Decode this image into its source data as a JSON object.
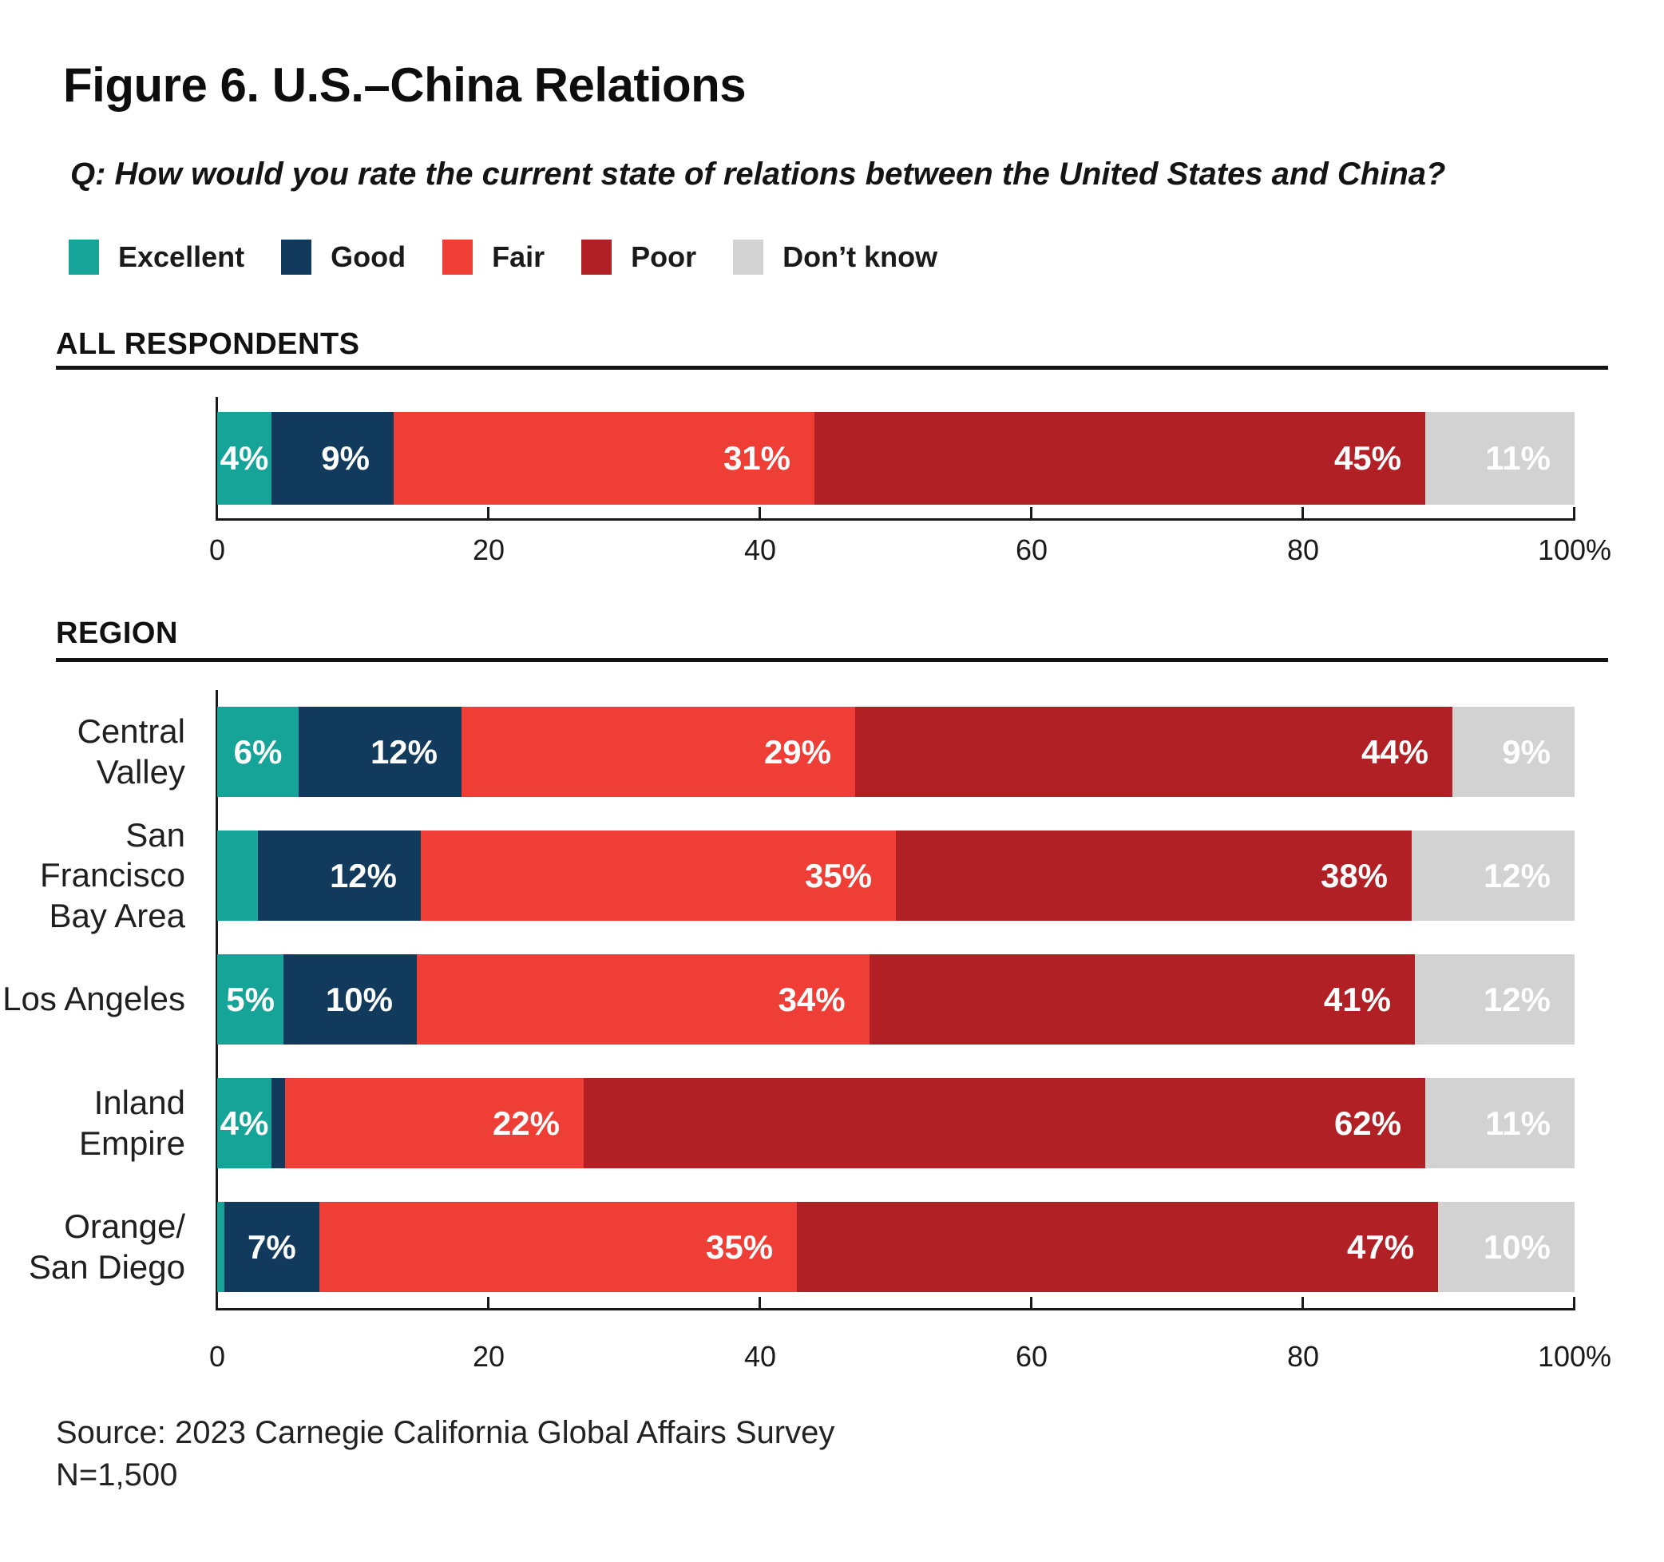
{
  "title": "Figure 6. U.S.–China Relations",
  "question": "Q: How would you rate the current state of relations between the United States and China?",
  "legend": {
    "items": [
      {
        "label": "Excellent",
        "color": "#16A398"
      },
      {
        "label": "Good",
        "color": "#113A5D"
      },
      {
        "label": "Fair",
        "color": "#EF3E36"
      },
      {
        "label": "Poor",
        "color": "#B02025"
      },
      {
        "label": "Don’t know",
        "color": "#D2D2D2"
      }
    ]
  },
  "source": {
    "line1": "Source: 2023 Carnegie California Global Affairs Survey",
    "line2": "N=1,500"
  },
  "colors": {
    "excellent": "#16A398",
    "good": "#113A5D",
    "fair": "#EF3E36",
    "poor": "#B02025",
    "dont_know": "#D2D2D2",
    "axis": "#1A1A1A",
    "bar_label_text": "#FFFFFF"
  },
  "chart_data": [
    {
      "type": "bar",
      "stacked": true,
      "orientation": "horizontal",
      "section_header": "ALL RESPONDENTS",
      "categories": [
        "All respondents"
      ],
      "category_lines": [
        []
      ],
      "xlim": [
        0,
        100
      ],
      "xticks": [
        0,
        20,
        40,
        60,
        80,
        100
      ],
      "xtick_labels": [
        "0",
        "20",
        "40",
        "60",
        "80",
        "100%"
      ],
      "grid": false,
      "legend_position": "top",
      "series": [
        {
          "name": "Excellent",
          "color": "#16A398",
          "values": [
            4
          ],
          "labels": [
            "4%"
          ]
        },
        {
          "name": "Good",
          "color": "#113A5D",
          "values": [
            9
          ],
          "labels": [
            "9%"
          ]
        },
        {
          "name": "Fair",
          "color": "#EF3E36",
          "values": [
            31
          ],
          "labels": [
            "31%"
          ]
        },
        {
          "name": "Poor",
          "color": "#B02025",
          "values": [
            45
          ],
          "labels": [
            "45%"
          ]
        },
        {
          "name": "Don’t know",
          "color": "#D2D2D2",
          "values": [
            11
          ],
          "labels": [
            "11%"
          ]
        }
      ]
    },
    {
      "type": "bar",
      "stacked": true,
      "orientation": "horizontal",
      "section_header": "REGION",
      "categories": [
        "Central Valley",
        "San Francisco Bay Area",
        "Los Angeles",
        "Inland Empire",
        "Orange/San Diego"
      ],
      "category_lines": [
        [
          "Central Valley"
        ],
        [
          "San Francisco",
          "Bay Area"
        ],
        [
          "Los Angeles"
        ],
        [
          "Inland Empire"
        ],
        [
          "Orange/",
          "San Diego"
        ]
      ],
      "xlim": [
        0,
        100
      ],
      "xticks": [
        0,
        20,
        40,
        60,
        80,
        100
      ],
      "xtick_labels": [
        "0",
        "20",
        "40",
        "60",
        "80",
        "100%"
      ],
      "grid": false,
      "series": [
        {
          "name": "Excellent",
          "color": "#16A398",
          "values": [
            6,
            3,
            5,
            4,
            0.5
          ],
          "labels": [
            "6%",
            "",
            "5%",
            "4%",
            ""
          ]
        },
        {
          "name": "Good",
          "color": "#113A5D",
          "values": [
            12,
            12,
            10,
            1,
            7
          ],
          "labels": [
            "12%",
            "12%",
            "10%",
            "",
            "7%"
          ]
        },
        {
          "name": "Fair",
          "color": "#EF3E36",
          "values": [
            29,
            35,
            34,
            22,
            35
          ],
          "labels": [
            "29%",
            "35%",
            "34%",
            "22%",
            "35%"
          ]
        },
        {
          "name": "Poor",
          "color": "#B02025",
          "values": [
            44,
            38,
            41,
            62,
            47
          ],
          "labels": [
            "44%",
            "38%",
            "41%",
            "62%",
            "47%"
          ]
        },
        {
          "name": "Don’t know",
          "color": "#D2D2D2",
          "values": [
            9,
            12,
            12,
            11,
            10
          ],
          "labels": [
            "9%",
            "12%",
            "12%",
            "11%",
            "10%"
          ]
        }
      ]
    }
  ]
}
